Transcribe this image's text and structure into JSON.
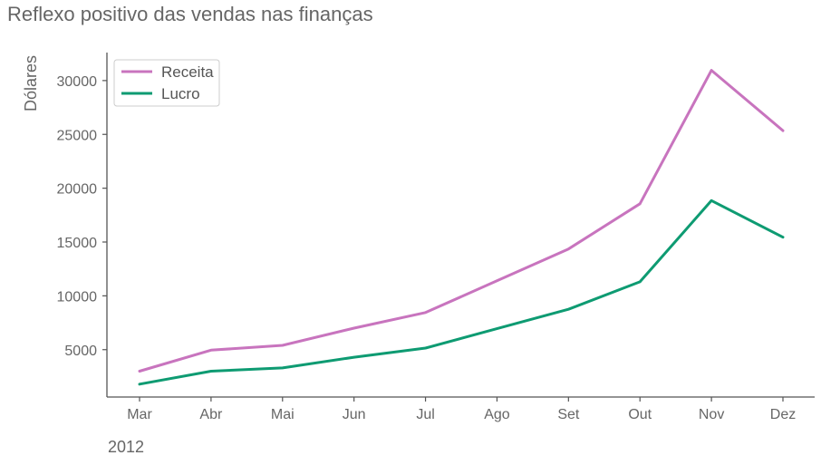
{
  "chart_data": {
    "type": "line",
    "title": "Reflexo positivo das vendas nas finanças",
    "xlabel": "2012",
    "ylabel": "Dólares",
    "categories": [
      "Mar",
      "Abr",
      "Mai",
      "Jun",
      "Jul",
      "Ago",
      "Set",
      "Out",
      "Nov",
      "Dez"
    ],
    "series": [
      {
        "name": "Receita",
        "color": "#c874be",
        "values": [
          3000,
          4950,
          5400,
          7000,
          8450,
          11400,
          14350,
          18550,
          30950,
          25350
        ]
      },
      {
        "name": "Lucro",
        "color": "#0e9b72",
        "values": [
          1800,
          3000,
          3300,
          4300,
          5150,
          6950,
          8750,
          11300,
          18850,
          15450
        ]
      }
    ],
    "yticks": [
      5000,
      10000,
      15000,
      20000,
      25000,
      30000
    ],
    "ylim": [
      600,
      32600
    ],
    "grid": false,
    "legend_position": "upper-left"
  }
}
